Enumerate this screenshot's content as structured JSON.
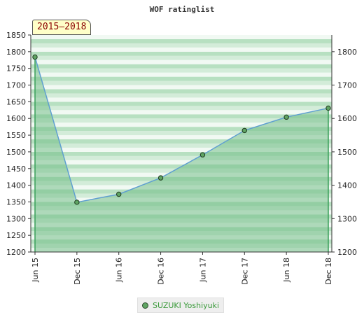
{
  "chart_data": {
    "type": "area",
    "title": "WOF ratinglist",
    "period_label": "2015–2018",
    "categories": [
      "Jun 15",
      "Dec 15",
      "Jun 16",
      "Dec 16",
      "Jun 17",
      "Dec 17",
      "Jun 18",
      "Dec 18"
    ],
    "series": [
      {
        "name": "SUZUKI Yoshiyuki",
        "values": [
          1784,
          1349,
          1373,
          1422,
          1491,
          1564,
          1604,
          1631
        ]
      }
    ],
    "y_left_ticks": [
      1200,
      1250,
      1300,
      1350,
      1400,
      1450,
      1500,
      1550,
      1600,
      1650,
      1700,
      1750,
      1800,
      1850
    ],
    "y_right_ticks": [
      1200,
      1300,
      1400,
      1500,
      1600,
      1700,
      1800
    ],
    "ylim": [
      1200,
      1850
    ],
    "legend_position": "bottom",
    "colors": {
      "line": "#5f9fd0",
      "area": "#77c08a",
      "marker": "#5fa463",
      "legend_text": "#3a9a3a"
    }
  }
}
